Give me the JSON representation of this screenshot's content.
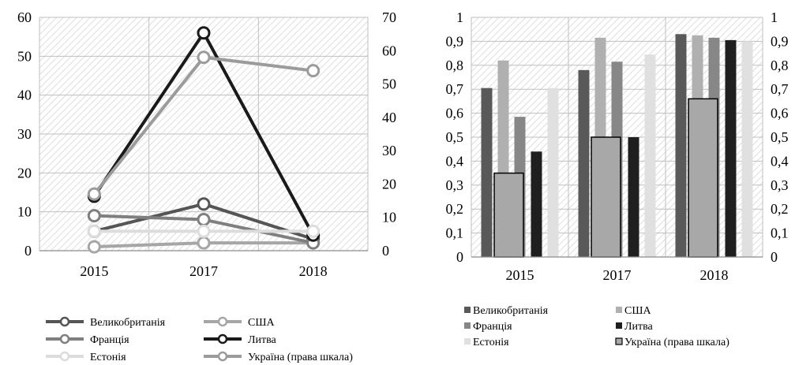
{
  "chart_data": [
    {
      "type": "line",
      "categories": [
        "2015",
        "2017",
        "2018"
      ],
      "left_axis": {
        "ylim": [
          0,
          60
        ],
        "ticks": [
          "0",
          "10",
          "20",
          "30",
          "40",
          "50",
          "60"
        ]
      },
      "right_axis": {
        "ylim": [
          0,
          70
        ],
        "ticks": [
          "0",
          "10",
          "20",
          "30",
          "40",
          "50",
          "60",
          "70"
        ]
      },
      "grid": true,
      "legend_position": "bottom",
      "series": [
        {
          "name": "Великобританія",
          "axis": "left",
          "values": [
            5,
            12,
            3
          ],
          "color": "#555555"
        },
        {
          "name": "США",
          "axis": "left",
          "values": [
            1,
            2,
            2
          ],
          "color": "#a6a6a6"
        },
        {
          "name": "Франція",
          "axis": "left",
          "values": [
            9,
            8,
            2
          ],
          "color": "#7f7f7f"
        },
        {
          "name": "Литва",
          "axis": "left",
          "values": [
            14,
            56,
            4
          ],
          "color": "#1a1a1a"
        },
        {
          "name": "Естонія",
          "axis": "left",
          "values": [
            5,
            5,
            5
          ],
          "color": "#dcdcdc"
        },
        {
          "name": "Україна (права шкала)",
          "axis": "right",
          "values": [
            17,
            58,
            54
          ],
          "color": "#9b9b9b"
        }
      ]
    },
    {
      "type": "bar",
      "categories": [
        "2015",
        "2017",
        "2018"
      ],
      "left_axis": {
        "ylim": [
          0,
          1
        ],
        "ticks": [
          "0",
          "0,1",
          "0,2",
          "0,3",
          "0,4",
          "0,5",
          "0,6",
          "0,7",
          "0,8",
          "0,9",
          "1"
        ]
      },
      "right_axis": {
        "ylim": [
          0,
          1
        ],
        "ticks": [
          "0",
          "0,1",
          "0,2",
          "0,3",
          "0,4",
          "0,5",
          "0,6",
          "0,7",
          "0,8",
          "0,9",
          "1"
        ]
      },
      "grid": true,
      "legend_position": "bottom",
      "series": [
        {
          "name": "Великобританія",
          "axis": "left",
          "values": [
            0.705,
            0.78,
            0.93
          ],
          "color": "#595959"
        },
        {
          "name": "США",
          "axis": "left",
          "values": [
            0.82,
            0.915,
            0.925
          ],
          "color": "#b0b0b0"
        },
        {
          "name": "Франція",
          "axis": "left",
          "values": [
            0.585,
            0.815,
            0.915
          ],
          "color": "#878787"
        },
        {
          "name": "Литва",
          "axis": "left",
          "values": [
            0.44,
            0.5,
            0.905
          ],
          "color": "#1f1f1f"
        },
        {
          "name": "Естонія",
          "axis": "left",
          "values": [
            0.705,
            0.845,
            0.9
          ],
          "color": "#e0e0e0"
        },
        {
          "name": "Україна (права шкала)",
          "axis": "right",
          "values": [
            0.35,
            0.5,
            0.66
          ],
          "color": "#a8a8a8"
        }
      ]
    }
  ]
}
